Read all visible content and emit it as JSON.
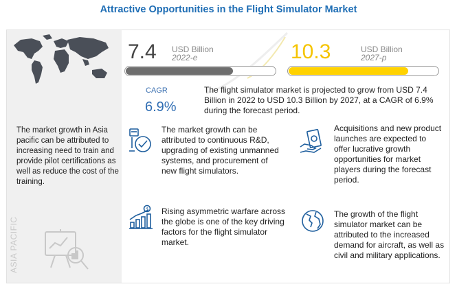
{
  "title": "Attractive Opportunities in the Flight Simulator Market",
  "region": {
    "label": "ASIA PACIFIC",
    "text": "The market growth in Asia pacific can be attributed to increasing need to train and provide pilot certifications as well as reduce the cost of the training."
  },
  "stats": {
    "value_2022": "7.4",
    "unit_2022": "USD Billion",
    "year_2022": "2022-e",
    "value_2027": "10.3",
    "unit_2027": "USD Billion",
    "year_2027": "2027-p",
    "bar_2022_fill_pct": 72,
    "bar_2027_fill_pct": 80,
    "cagr_label": "CAGR",
    "cagr_value": "6.9%"
  },
  "summary": "The flight simulator market is projected to grow from USD 7.4 Billion in 2022 to USD 10.3 Billion by 2027, at a CAGR of 6.9% during the forecast period.",
  "features": [
    {
      "icon": "rnd-icon",
      "text": "The market growth can be attributed to continuous R&D, upgrading of existing unmanned systems, and procurement of new flight simulators."
    },
    {
      "icon": "money-hand-icon",
      "text": "Acquisitions and new product launches are expected to offer lucrative growth opportunities for market players during the forecast period."
    },
    {
      "icon": "growth-chart-icon",
      "text": "Rising asymmetric warfare across the globe is one of the key driving factors for the flight simulator market."
    },
    {
      "icon": "globe-icon",
      "text": "The growth of the flight simulator market can be attributed to the increased demand for aircraft, as well as civil and military applications."
    }
  ],
  "colors": {
    "title": "#1f6eb5",
    "bar_2022": "#6e6e6e",
    "bar_2027": "#ffd200",
    "accent_blue": "#2f6db3",
    "icon_blue": "#1f5f9e"
  }
}
